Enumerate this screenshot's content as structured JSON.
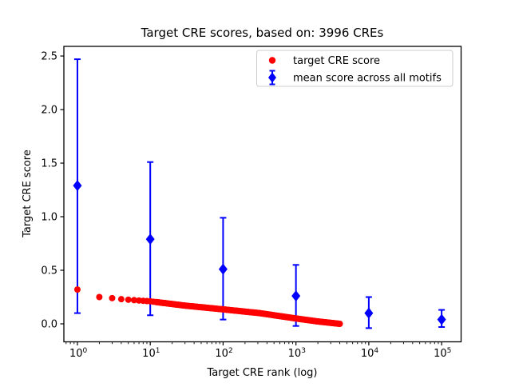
{
  "figure": {
    "title": "Target CRE scores, based on: 3996 CREs",
    "xlabel": "Target CRE rank (log)",
    "ylabel": "Target CRE score"
  },
  "legend": {
    "position": "upper right",
    "border_color": "#cccccc",
    "items": [
      {
        "label": "target CRE score",
        "marker": "circle",
        "color": "#ff0000"
      },
      {
        "label": "mean score across all motifs",
        "marker": "diamond-errorbar",
        "color": "#0000ff"
      }
    ]
  },
  "chart_data": {
    "type": "scatter",
    "title": "Target CRE scores, based on: 3996 CREs",
    "xlabel": "Target CRE rank (log)",
    "ylabel": "Target CRE score",
    "x_scale": "log",
    "grid": false,
    "xlim": [
      0.652,
      185000
    ],
    "ylim": [
      -0.168,
      2.59
    ],
    "x_ticks": [
      {
        "value": 1,
        "base": "10",
        "exp": "0"
      },
      {
        "value": 10,
        "base": "10",
        "exp": "1"
      },
      {
        "value": 100,
        "base": "10",
        "exp": "2"
      },
      {
        "value": 1000,
        "base": "10",
        "exp": "3"
      },
      {
        "value": 10000,
        "base": "10",
        "exp": "4"
      },
      {
        "value": 100000,
        "base": "10",
        "exp": "5"
      }
    ],
    "y_ticks": [
      {
        "value": 0.0,
        "label": "0.0"
      },
      {
        "value": 0.5,
        "label": "0.5"
      },
      {
        "value": 1.0,
        "label": "1.0"
      },
      {
        "value": 1.5,
        "label": "1.5"
      },
      {
        "value": 2.0,
        "label": "2.0"
      },
      {
        "value": 2.5,
        "label": "2.5"
      }
    ],
    "series": [
      {
        "name": "mean score across all motifs",
        "type": "errorbar",
        "color": "#0000ff",
        "marker": "diamond",
        "points": [
          {
            "x": 1,
            "y": 1.29,
            "err_lo": 0.1,
            "err_hi": 2.47
          },
          {
            "x": 10,
            "y": 0.79,
            "err_lo": 0.08,
            "err_hi": 1.51
          },
          {
            "x": 100,
            "y": 0.51,
            "err_lo": 0.04,
            "err_hi": 0.99
          },
          {
            "x": 1000,
            "y": 0.26,
            "err_lo": -0.02,
            "err_hi": 0.55
          },
          {
            "x": 10000,
            "y": 0.1,
            "err_lo": -0.04,
            "err_hi": 0.25
          },
          {
            "x": 100000,
            "y": 0.04,
            "err_lo": -0.03,
            "err_hi": 0.13
          }
        ]
      },
      {
        "name": "target CRE score",
        "type": "scatter",
        "color": "#ff0000",
        "marker": "circle",
        "n_points": 3996,
        "rank_range": [
          1,
          3996
        ],
        "anchors": [
          [
            1,
            0.32
          ],
          [
            2,
            0.25
          ],
          [
            3,
            0.24
          ],
          [
            4,
            0.23
          ],
          [
            5,
            0.225
          ],
          [
            10,
            0.21
          ],
          [
            30,
            0.17
          ],
          [
            100,
            0.135
          ],
          [
            316,
            0.1
          ],
          [
            1000,
            0.05
          ],
          [
            2000,
            0.022
          ],
          [
            3996,
            0.0
          ]
        ]
      }
    ]
  }
}
